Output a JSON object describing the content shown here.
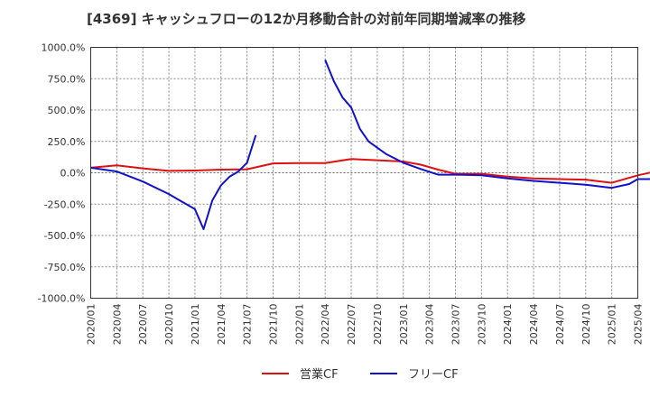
{
  "chart_data": {
    "type": "line",
    "title": "[4369]  キャッシュフローの12か月移動合計の対前年同期増減率の推移",
    "xlabel": "",
    "ylabel": "",
    "ylim": [
      -1000,
      1000
    ],
    "yticks": [
      1000,
      750,
      500,
      250,
      0,
      -250,
      -500,
      -750,
      -1000
    ],
    "ytick_labels": [
      "1000.0%",
      "750.0%",
      "500.0%",
      "250.0%",
      "0.0%",
      "-250.0%",
      "-500.0%",
      "-750.0%",
      "-1000.0%"
    ],
    "x_tick_labels": [
      "2020/01",
      "2020/04",
      "2020/07",
      "2020/10",
      "2021/01",
      "2021/04",
      "2021/07",
      "2021/10",
      "2022/01",
      "2022/04",
      "2022/07",
      "2022/10",
      "2023/01",
      "2023/04",
      "2023/07",
      "2023/10",
      "2024/01",
      "2024/04",
      "2024/07",
      "2024/10",
      "2025/01",
      "2025/04"
    ],
    "x_range_months": [
      0,
      63
    ],
    "grid": true,
    "legend_position": "bottom-center",
    "series": [
      {
        "name": "営業CF",
        "color": "#dd1111",
        "points": [
          [
            0,
            40
          ],
          [
            3,
            60
          ],
          [
            6,
            35
          ],
          [
            9,
            15
          ],
          [
            12,
            18
          ],
          [
            15,
            25
          ],
          [
            18,
            28
          ],
          [
            21,
            75
          ],
          [
            24,
            78
          ],
          [
            27,
            78
          ],
          [
            30,
            110
          ],
          [
            33,
            100
          ],
          [
            36,
            90
          ],
          [
            38,
            65
          ],
          [
            40,
            25
          ],
          [
            42,
            -8
          ],
          [
            45,
            -8
          ],
          [
            48,
            -30
          ],
          [
            51,
            -45
          ],
          [
            54,
            -50
          ],
          [
            57,
            -55
          ],
          [
            60,
            -80
          ],
          [
            63,
            -20
          ],
          [
            66,
            25
          ]
        ]
      },
      {
        "name": "フリーCF",
        "color": "#1111cc",
        "segments": [
          [
            [
              0,
              40
            ],
            [
              3,
              10
            ],
            [
              6,
              -70
            ],
            [
              9,
              -170
            ],
            [
              10,
              -210
            ],
            [
              11,
              -250
            ],
            [
              12,
              -290
            ],
            [
              13,
              -450
            ],
            [
              14,
              -220
            ],
            [
              15,
              -100
            ],
            [
              16,
              -30
            ],
            [
              17,
              10
            ],
            [
              18,
              80
            ],
            [
              19,
              300
            ]
          ],
          [
            [
              27,
              900
            ],
            [
              28,
              730
            ],
            [
              29,
              600
            ],
            [
              30,
              520
            ],
            [
              31,
              350
            ],
            [
              32,
              250
            ],
            [
              34,
              150
            ],
            [
              36,
              80
            ],
            [
              38,
              30
            ],
            [
              40,
              -15
            ],
            [
              42,
              -15
            ],
            [
              45,
              -20
            ],
            [
              48,
              -45
            ],
            [
              51,
              -65
            ],
            [
              54,
              -80
            ],
            [
              57,
              -95
            ],
            [
              60,
              -120
            ],
            [
              62,
              -90
            ],
            [
              63,
              -50
            ],
            [
              66,
              -50
            ]
          ]
        ]
      }
    ]
  }
}
